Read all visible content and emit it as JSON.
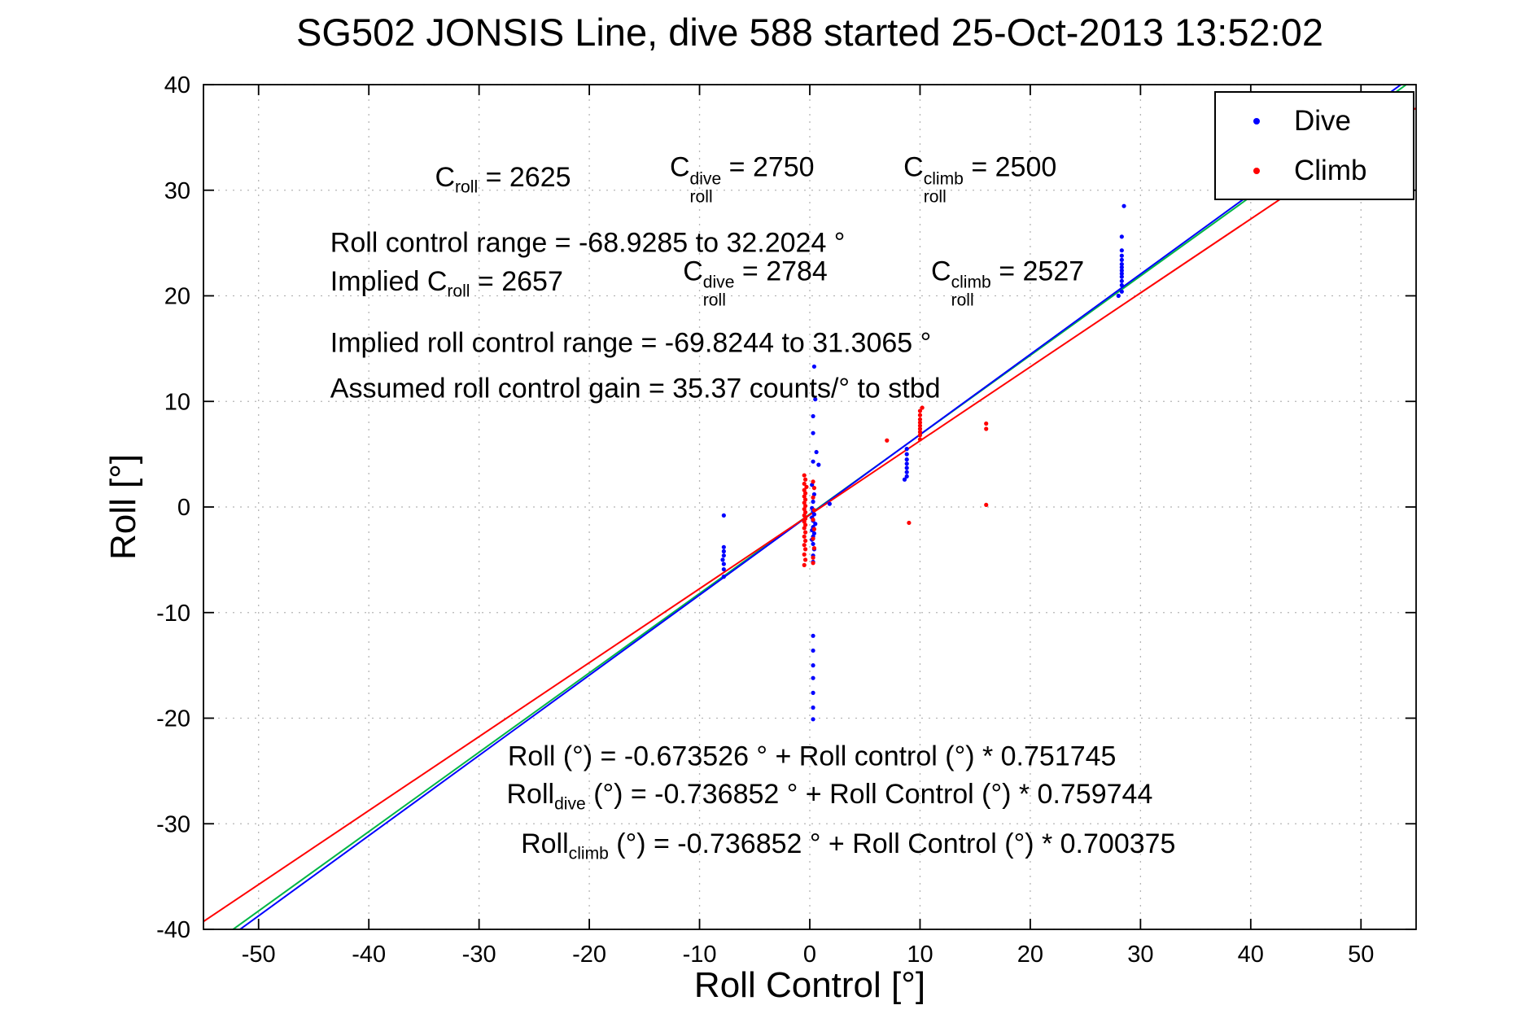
{
  "chart_data": {
    "type": "scatter",
    "title": "SG502 JONSIS Line, dive 588 started 25-Oct-2013 13:52:02",
    "xlabel": "Roll Control [°]",
    "ylabel": "Roll [°]",
    "xlim": [
      -55,
      55
    ],
    "ylim": [
      -40,
      40
    ],
    "xticks": [
      -50,
      -40,
      -30,
      -20,
      -10,
      0,
      10,
      20,
      30,
      40,
      50
    ],
    "yticks": [
      -40,
      -30,
      -20,
      -10,
      0,
      10,
      20,
      30,
      40
    ],
    "grid": true,
    "legend": {
      "position": "top-right",
      "entries": [
        {
          "label": "Dive",
          "color": "#0000ff",
          "marker": "dot"
        },
        {
          "label": "Climb",
          "color": "#ff0000",
          "marker": "dot"
        }
      ]
    },
    "scatter_series": [
      {
        "name": "Dive",
        "color": "#0000ff",
        "points": [
          [
            -7.8,
            -0.8
          ],
          [
            -7.8,
            -3.8
          ],
          [
            -7.8,
            -4.2
          ],
          [
            -7.8,
            -4.6
          ],
          [
            -7.9,
            -5.0
          ],
          [
            -7.8,
            -5.4
          ],
          [
            -7.8,
            -5.9
          ],
          [
            -7.8,
            -6.6
          ],
          [
            0.4,
            13.3
          ],
          [
            0.5,
            10.2
          ],
          [
            0.3,
            8.6
          ],
          [
            0.3,
            7.0
          ],
          [
            0.6,
            5.2
          ],
          [
            0.3,
            4.3
          ],
          [
            0.8,
            4.0
          ],
          [
            0.2,
            2.1
          ],
          [
            0.4,
            1.2
          ],
          [
            0.3,
            0.5
          ],
          [
            1.8,
            0.3
          ],
          [
            0.2,
            -0.1
          ],
          [
            0.3,
            -0.4
          ],
          [
            0.4,
            -0.7
          ],
          [
            0.2,
            -1.0
          ],
          [
            0.3,
            -1.3
          ],
          [
            0.5,
            -1.6
          ],
          [
            0.3,
            -1.9
          ],
          [
            0.2,
            -2.2
          ],
          [
            0.4,
            -2.5
          ],
          [
            0.3,
            -2.8
          ],
          [
            0.2,
            -3.1
          ],
          [
            0.3,
            -3.5
          ],
          [
            0.4,
            -4.0
          ],
          [
            0.3,
            -4.6
          ],
          [
            0.3,
            -5.2
          ],
          [
            0.3,
            -12.2
          ],
          [
            0.3,
            -13.6
          ],
          [
            0.3,
            -15.0
          ],
          [
            0.3,
            -16.2
          ],
          [
            0.3,
            -17.6
          ],
          [
            0.3,
            -19.0
          ],
          [
            0.3,
            -20.1
          ],
          [
            8.6,
            2.6
          ],
          [
            8.8,
            2.9
          ],
          [
            8.8,
            3.3
          ],
          [
            8.8,
            3.7
          ],
          [
            8.8,
            4.1
          ],
          [
            8.8,
            4.5
          ],
          [
            8.8,
            5.0
          ],
          [
            8.8,
            5.5
          ],
          [
            28.0,
            20.0
          ],
          [
            28.3,
            20.4
          ],
          [
            28.3,
            21.0
          ],
          [
            28.3,
            21.4
          ],
          [
            28.3,
            21.8
          ],
          [
            28.3,
            22.1
          ],
          [
            28.3,
            22.4
          ],
          [
            28.3,
            22.7
          ],
          [
            28.3,
            23.0
          ],
          [
            28.3,
            23.4
          ],
          [
            28.3,
            23.8
          ],
          [
            28.3,
            24.3
          ],
          [
            28.3,
            25.6
          ],
          [
            28.5,
            28.5
          ]
        ]
      },
      {
        "name": "Climb",
        "color": "#ff0000",
        "points": [
          [
            -0.5,
            3.0
          ],
          [
            -0.4,
            2.6
          ],
          [
            -0.5,
            2.2
          ],
          [
            -0.3,
            1.9
          ],
          [
            -0.5,
            1.6
          ],
          [
            -0.4,
            1.3
          ],
          [
            -0.5,
            1.0
          ],
          [
            -0.4,
            0.7
          ],
          [
            -0.5,
            0.4
          ],
          [
            -0.4,
            0.1
          ],
          [
            -0.5,
            -0.2
          ],
          [
            -0.4,
            -0.5
          ],
          [
            -0.5,
            -0.8
          ],
          [
            -0.4,
            -1.1
          ],
          [
            -0.5,
            -1.4
          ],
          [
            -0.4,
            -1.7
          ],
          [
            -0.5,
            -2.0
          ],
          [
            -0.4,
            -2.4
          ],
          [
            -0.5,
            -2.8
          ],
          [
            -0.4,
            -3.2
          ],
          [
            -0.5,
            -3.6
          ],
          [
            -0.4,
            -4.0
          ],
          [
            -0.5,
            -4.5
          ],
          [
            -0.4,
            -5.0
          ],
          [
            -0.5,
            -5.5
          ],
          [
            0.3,
            2.4
          ],
          [
            0.4,
            1.8
          ],
          [
            0.3,
            0.9
          ],
          [
            0.4,
            -0.3
          ],
          [
            0.3,
            -1.2
          ],
          [
            0.4,
            -2.1
          ],
          [
            0.3,
            -3.0
          ],
          [
            0.4,
            -3.9
          ],
          [
            0.3,
            -4.8
          ],
          [
            0.3,
            -5.3
          ],
          [
            7.0,
            6.3
          ],
          [
            9.0,
            -1.5
          ],
          [
            10.0,
            6.4
          ],
          [
            10.0,
            6.8
          ],
          [
            10.0,
            7.1
          ],
          [
            10.0,
            7.4
          ],
          [
            10.0,
            7.7
          ],
          [
            10.0,
            8.0
          ],
          [
            10.0,
            8.3
          ],
          [
            10.0,
            8.7
          ],
          [
            10.0,
            9.1
          ],
          [
            10.2,
            9.4
          ],
          [
            16.0,
            7.4
          ],
          [
            16.0,
            7.9
          ],
          [
            16.0,
            0.2
          ]
        ]
      }
    ],
    "fit_lines": [
      {
        "name": "all",
        "color": "#00b545",
        "intercept": -0.673526,
        "slope": 0.751745
      },
      {
        "name": "dive",
        "color": "#0000ff",
        "intercept": -0.736852,
        "slope": 0.759744
      },
      {
        "name": "climb",
        "color": "#ff0000",
        "intercept": -0.736852,
        "slope": 0.700375
      }
    ],
    "annotations": [
      {
        "x": -34.0,
        "y": 30.8,
        "segments": [
          {
            "t": "C"
          },
          {
            "sub": "roll"
          },
          {
            "t": " = 2625"
          }
        ]
      },
      {
        "x": -12.7,
        "y": 30.8,
        "segments": [
          {
            "t": "C"
          },
          {
            "supsub": {
              "sup": "dive",
              "sub": "roll"
            }
          },
          {
            "t": " = 2750"
          }
        ]
      },
      {
        "x": 8.5,
        "y": 30.8,
        "segments": [
          {
            "t": "C"
          },
          {
            "supsub": {
              "sup": "climb",
              "sub": "roll"
            }
          },
          {
            "t": " = 2500"
          }
        ]
      },
      {
        "x": -43.5,
        "y": 24.8,
        "segments": [
          {
            "t": "Roll control range = -68.9285 to 32.2024 °"
          }
        ]
      },
      {
        "x": -43.5,
        "y": 21.0,
        "segments": [
          {
            "t": "Implied C"
          },
          {
            "sub": "roll"
          },
          {
            "t": " = 2657"
          }
        ]
      },
      {
        "x": -11.5,
        "y": 21.0,
        "segments": [
          {
            "t": "C"
          },
          {
            "supsub": {
              "sup": "dive",
              "sub": "roll"
            }
          },
          {
            "t": " = 2784"
          }
        ]
      },
      {
        "x": 11.0,
        "y": 21.0,
        "segments": [
          {
            "t": "C"
          },
          {
            "supsub": {
              "sup": "climb",
              "sub": "roll"
            }
          },
          {
            "t": " = 2527"
          }
        ]
      },
      {
        "x": -43.5,
        "y": 15.3,
        "segments": [
          {
            "t": "Implied roll control range = -69.8244 to 31.3065 °"
          }
        ]
      },
      {
        "x": -43.5,
        "y": 11.0,
        "segments": [
          {
            "t": "Assumed roll control gain = 35.37 counts/° to stbd"
          }
        ]
      },
      {
        "x": -27.4,
        "y": -23.8,
        "segments": [
          {
            "t": "Roll (°) = -0.673526 ° + Roll control (°) * 0.751745"
          }
        ]
      },
      {
        "x": -27.5,
        "y": -27.6,
        "segments": [
          {
            "t": "Roll"
          },
          {
            "sub": "dive"
          },
          {
            "t": " (°) = -0.736852 ° + Roll Control (°) * 0.759744"
          }
        ]
      },
      {
        "x": -26.2,
        "y": -32.3,
        "segments": [
          {
            "t": "Roll"
          },
          {
            "sub": "climb"
          },
          {
            "t": " (°) = -0.736852 ° + Roll Control (°) * 0.700375"
          }
        ]
      }
    ]
  }
}
